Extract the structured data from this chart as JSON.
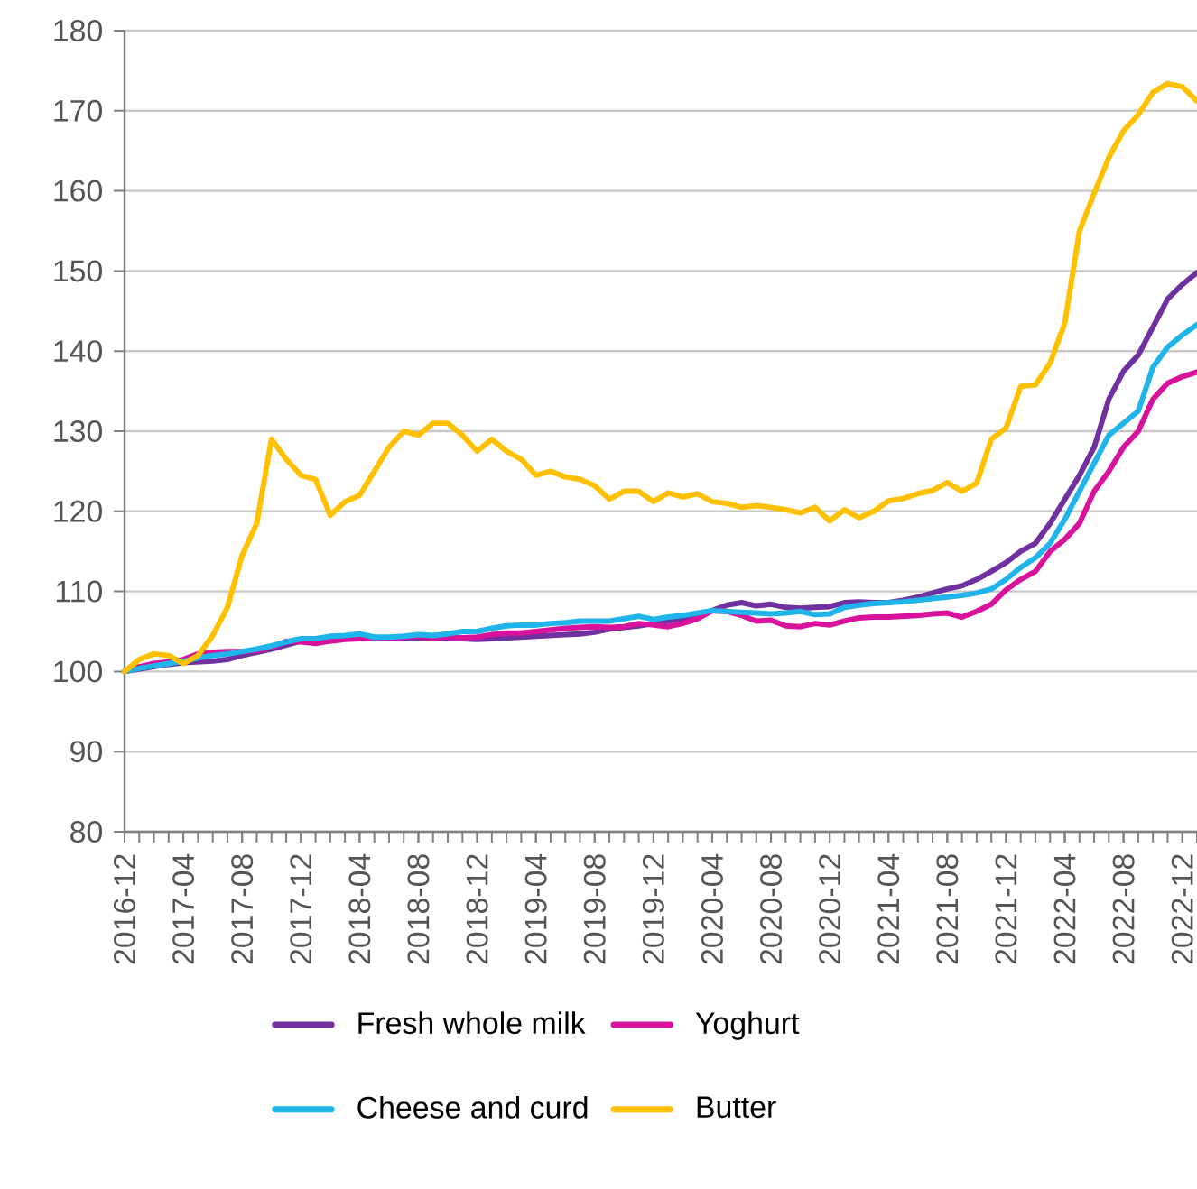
{
  "chart_data": {
    "type": "line",
    "x": [
      "2016-12",
      "2017-01",
      "2017-02",
      "2017-03",
      "2017-04",
      "2017-05",
      "2017-06",
      "2017-07",
      "2017-08",
      "2017-09",
      "2017-10",
      "2017-11",
      "2017-12",
      "2018-01",
      "2018-02",
      "2018-03",
      "2018-04",
      "2018-05",
      "2018-06",
      "2018-07",
      "2018-08",
      "2018-09",
      "2018-10",
      "2018-11",
      "2018-12",
      "2019-01",
      "2019-02",
      "2019-03",
      "2019-04",
      "2019-05",
      "2019-06",
      "2019-07",
      "2019-08",
      "2019-09",
      "2019-10",
      "2019-11",
      "2019-12",
      "2020-01",
      "2020-02",
      "2020-03",
      "2020-04",
      "2020-05",
      "2020-06",
      "2020-07",
      "2020-08",
      "2020-09",
      "2020-10",
      "2020-11",
      "2020-12",
      "2021-01",
      "2021-02",
      "2021-03",
      "2021-04",
      "2021-05",
      "2021-06",
      "2021-07",
      "2021-08",
      "2021-09",
      "2021-10",
      "2021-11",
      "2021-12",
      "2022-01",
      "2022-02",
      "2022-03",
      "2022-04",
      "2022-05",
      "2022-06",
      "2022-07",
      "2022-08",
      "2022-09",
      "2022-10",
      "2022-11",
      "2022-12",
      "2023-01"
    ],
    "series": [
      {
        "name": "Fresh whole milk",
        "color": "#7030a0",
        "values": [
          100,
          100.3,
          100.6,
          100.9,
          101.1,
          101.2,
          101.3,
          101.5,
          102,
          102.4,
          102.8,
          103.3,
          103.8,
          104,
          104.1,
          104.2,
          104.3,
          104.2,
          104.1,
          104.1,
          104.2,
          104.2,
          104.1,
          104.1,
          104,
          104.1,
          104.2,
          104.3,
          104.4,
          104.5,
          104.6,
          104.7,
          104.9,
          105.3,
          105.5,
          105.7,
          106,
          106.3,
          106.6,
          107,
          107.6,
          108.3,
          108.6,
          108.2,
          108.4,
          108,
          107.9,
          108,
          108.1,
          108.6,
          108.7,
          108.6,
          108.6,
          108.9,
          109.3,
          109.8,
          110.3,
          110.7,
          111.5,
          112.5,
          113.6,
          115,
          116,
          118.5,
          121.5,
          124.5,
          128,
          134,
          137.5,
          139.5,
          143,
          146.5,
          148.3,
          149.8
        ]
      },
      {
        "name": "Yoghurt",
        "color": "#d9129b",
        "values": [
          100,
          100.6,
          101,
          101.2,
          101.5,
          102.2,
          102.4,
          102.5,
          102.5,
          102.6,
          103,
          103.8,
          103.7,
          103.5,
          103.8,
          104,
          104.1,
          104.2,
          104.1,
          104.3,
          104.4,
          104.2,
          104.3,
          104.2,
          104.3,
          104.6,
          104.8,
          104.8,
          105,
          105.2,
          105.4,
          105.5,
          105.6,
          105.5,
          105.6,
          106,
          105.8,
          105.6,
          106,
          106.6,
          107.6,
          107.5,
          107,
          106.3,
          106.4,
          105.7,
          105.6,
          106,
          105.8,
          106.3,
          106.7,
          106.8,
          106.8,
          106.9,
          107,
          107.2,
          107.3,
          106.8,
          107.5,
          108.4,
          110.2,
          111.5,
          112.5,
          115,
          116.5,
          118.5,
          122.5,
          125,
          128,
          130,
          134,
          136,
          136.8,
          137.4
        ]
      },
      {
        "name": "Cheese and curd",
        "color": "#1fb4ea",
        "values": [
          100,
          100.4,
          100.7,
          101,
          101.3,
          101.7,
          102,
          102.2,
          102.5,
          102.8,
          103.2,
          103.7,
          104.1,
          104.1,
          104.4,
          104.5,
          104.7,
          104.3,
          104.3,
          104.4,
          104.6,
          104.5,
          104.7,
          105,
          105,
          105.4,
          105.7,
          105.8,
          105.8,
          106,
          106.1,
          106.3,
          106.3,
          106.3,
          106.6,
          106.9,
          106.5,
          106.8,
          107,
          107.3,
          107.6,
          107.5,
          107.4,
          107.3,
          107.2,
          107.3,
          107.5,
          107.1,
          107.2,
          108,
          108.3,
          108.5,
          108.6,
          108.7,
          108.9,
          109.1,
          109.3,
          109.5,
          109.8,
          110.3,
          111.5,
          113,
          114.2,
          116,
          119,
          122.5,
          126,
          129.5,
          131,
          132.5,
          138,
          140.5,
          142,
          143.3
        ]
      },
      {
        "name": "Butter",
        "color": "#ffc000",
        "values": [
          100,
          101.5,
          102.2,
          102,
          101,
          102,
          104.5,
          108,
          114.5,
          118.5,
          129,
          126.5,
          124.5,
          124,
          119.5,
          121.2,
          122,
          125,
          128,
          130,
          129.5,
          131,
          131,
          129.5,
          127.5,
          129,
          127.5,
          126.5,
          124.5,
          125,
          124.3,
          124,
          123.2,
          121.5,
          122.5,
          122.5,
          121.2,
          122.3,
          121.8,
          122.2,
          121.2,
          121,
          120.5,
          120.7,
          120.5,
          120.2,
          119.8,
          120.5,
          118.8,
          120.2,
          119.2,
          120,
          121.3,
          121.6,
          122.2,
          122.6,
          123.6,
          122.5,
          123.5,
          129,
          130.4,
          135.6,
          135.8,
          138.5,
          143.5,
          155,
          159.7,
          164.2,
          167.5,
          169.5,
          172.3,
          173.4,
          173,
          171.2
        ]
      }
    ],
    "xlim": [
      "2016-12",
      "2023-01"
    ],
    "xticks": [
      "2016-12",
      "2017-04",
      "2017-08",
      "2017-12",
      "2018-04",
      "2018-08",
      "2018-12",
      "2019-04",
      "2019-08",
      "2019-12",
      "2020-04",
      "2020-08",
      "2020-12",
      "2021-04",
      "2021-08",
      "2021-12",
      "2022-04",
      "2022-08",
      "2022-12"
    ],
    "ylim": [
      80,
      180
    ],
    "yticks": [
      80,
      90,
      100,
      110,
      120,
      130,
      140,
      150,
      160,
      170,
      180
    ],
    "grid": "y",
    "legend": "bottom"
  }
}
